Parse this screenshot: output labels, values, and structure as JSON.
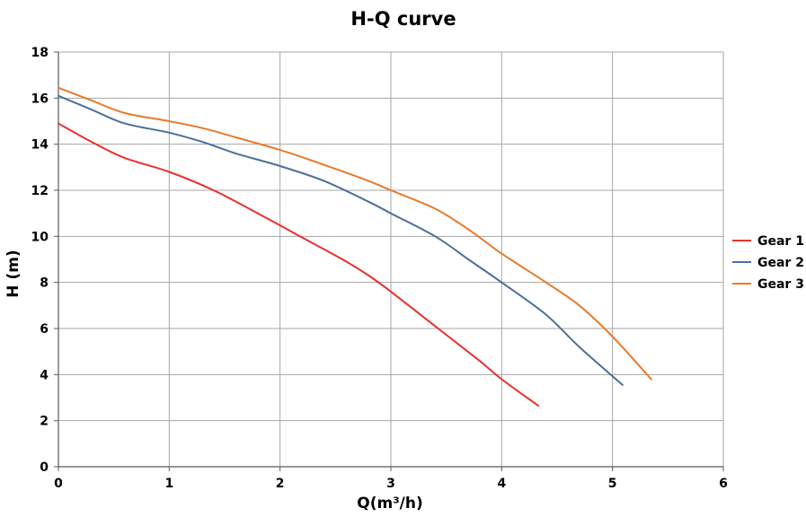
{
  "chart_data": {
    "type": "line",
    "title": "H-Q  curve",
    "xlabel": "Q(m³/h)",
    "ylabel": "H  (m)",
    "xlim": [
      0,
      6
    ],
    "ylim": [
      0,
      18
    ],
    "x_ticks": [
      0,
      1,
      2,
      3,
      4,
      5,
      6
    ],
    "y_ticks": [
      0,
      2,
      4,
      6,
      8,
      10,
      12,
      14,
      16,
      18
    ],
    "grid": true,
    "legend_position": "right",
    "series": [
      {
        "name": "Gear 1",
        "color": "#e8312f",
        "points": [
          [
            0,
            14.9
          ],
          [
            0.3,
            14.1
          ],
          [
            0.6,
            13.4
          ],
          [
            1.0,
            12.8
          ],
          [
            1.4,
            12.0
          ],
          [
            1.8,
            11.0
          ],
          [
            2.2,
            9.95
          ],
          [
            2.6,
            8.9
          ],
          [
            2.8,
            8.3
          ],
          [
            3.0,
            7.6
          ],
          [
            3.4,
            6.1
          ],
          [
            3.8,
            4.6
          ],
          [
            4.0,
            3.8
          ],
          [
            4.33,
            2.65
          ]
        ]
      },
      {
        "name": "Gear 2",
        "color": "#4b6f9a",
        "points": [
          [
            0,
            16.1
          ],
          [
            0.3,
            15.5
          ],
          [
            0.6,
            14.9
          ],
          [
            1.0,
            14.5
          ],
          [
            1.3,
            14.1
          ],
          [
            1.6,
            13.6
          ],
          [
            2.0,
            13.05
          ],
          [
            2.4,
            12.4
          ],
          [
            2.8,
            11.5
          ],
          [
            3.0,
            11.0
          ],
          [
            3.4,
            10.0
          ],
          [
            3.7,
            9.0
          ],
          [
            4.0,
            8.0
          ],
          [
            4.4,
            6.6
          ],
          [
            4.7,
            5.2
          ],
          [
            5.09,
            3.55
          ]
        ]
      },
      {
        "name": "Gear 3",
        "color": "#e87a2c",
        "points": [
          [
            0,
            16.45
          ],
          [
            0.3,
            15.9
          ],
          [
            0.6,
            15.35
          ],
          [
            1.0,
            15.0
          ],
          [
            1.3,
            14.7
          ],
          [
            1.6,
            14.3
          ],
          [
            2.0,
            13.75
          ],
          [
            2.4,
            13.1
          ],
          [
            2.8,
            12.4
          ],
          [
            3.0,
            12.0
          ],
          [
            3.4,
            11.2
          ],
          [
            3.7,
            10.3
          ],
          [
            4.0,
            9.25
          ],
          [
            4.4,
            8.0
          ],
          [
            4.7,
            7.0
          ],
          [
            5.0,
            5.65
          ],
          [
            5.35,
            3.8
          ]
        ]
      }
    ]
  }
}
